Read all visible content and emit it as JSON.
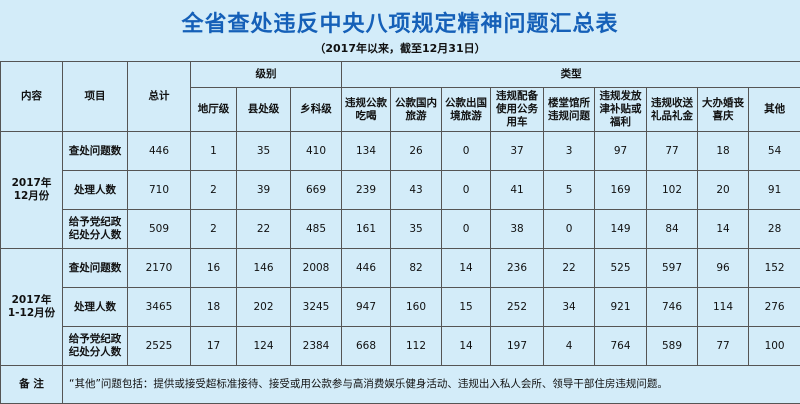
{
  "title": "全省查处违反中央八项规定精神问题汇总表",
  "subtitle": "（2017年以来，截至12月31日）",
  "table": {
    "headers": {
      "content": "内容",
      "item": "项目",
      "total": "总计",
      "level": "级别",
      "type": "类型",
      "levels": [
        "地厅级",
        "县处级",
        "乡科级"
      ],
      "types": [
        "违规公款吃喝",
        "公款国内旅游",
        "公款出国境旅游",
        "违规配备使用公务用车",
        "楼堂馆所违规问题",
        "违规发放津补贴或福利",
        "违规收送礼品礼金",
        "大办婚丧喜庆",
        "其他"
      ]
    },
    "groups": [
      {
        "label": "2017年\n12月份",
        "rows": [
          {
            "item": "查处问题数",
            "values": [
              446,
              1,
              35,
              410,
              134,
              26,
              0,
              37,
              3,
              97,
              77,
              18,
              54
            ]
          },
          {
            "item": "处理人数",
            "values": [
              710,
              2,
              39,
              669,
              239,
              43,
              0,
              41,
              5,
              169,
              102,
              20,
              91
            ]
          },
          {
            "item": "给予党纪政纪处分人数",
            "values": [
              509,
              2,
              22,
              485,
              161,
              35,
              0,
              38,
              0,
              149,
              84,
              14,
              28
            ]
          }
        ]
      },
      {
        "label": "2017年\n1-12月份",
        "rows": [
          {
            "item": "查处问题数",
            "values": [
              2170,
              16,
              146,
              2008,
              446,
              82,
              14,
              236,
              22,
              525,
              597,
              96,
              152
            ]
          },
          {
            "item": "处理人数",
            "values": [
              3465,
              18,
              202,
              3245,
              947,
              160,
              15,
              252,
              34,
              921,
              746,
              114,
              276
            ]
          },
          {
            "item": "给予党纪政纪处分人数",
            "values": [
              2525,
              17,
              124,
              2384,
              668,
              112,
              14,
              197,
              4,
              764,
              589,
              77,
              100
            ]
          }
        ]
      }
    ],
    "note_label": "备  注",
    "note": "“其他”问题包括：提供或接受超标准接待、接受或用公款参与高消费娱乐健身活动、违规出入私人会所、领导干部住房违规问题。"
  }
}
